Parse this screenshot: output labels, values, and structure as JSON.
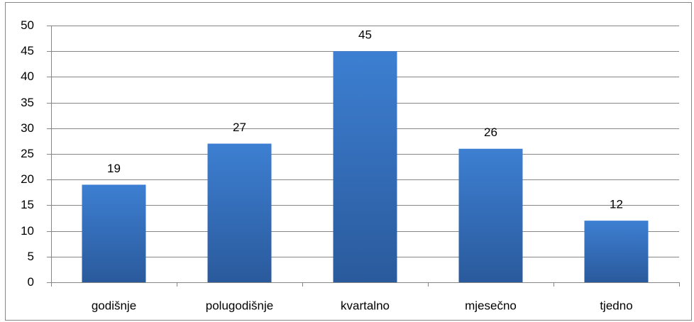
{
  "chart_data": {
    "type": "bar",
    "categories": [
      "godišnje",
      "polugodišnje",
      "kvartalno",
      "mjesečno",
      "tjedno"
    ],
    "values": [
      19,
      27,
      45,
      26,
      12
    ],
    "color": "#3d7fd2",
    "ylim": [
      0,
      50
    ],
    "yticks": [
      0,
      5,
      10,
      15,
      20,
      25,
      30,
      35,
      40,
      45,
      50
    ],
    "grid": true,
    "data_labels": true
  }
}
